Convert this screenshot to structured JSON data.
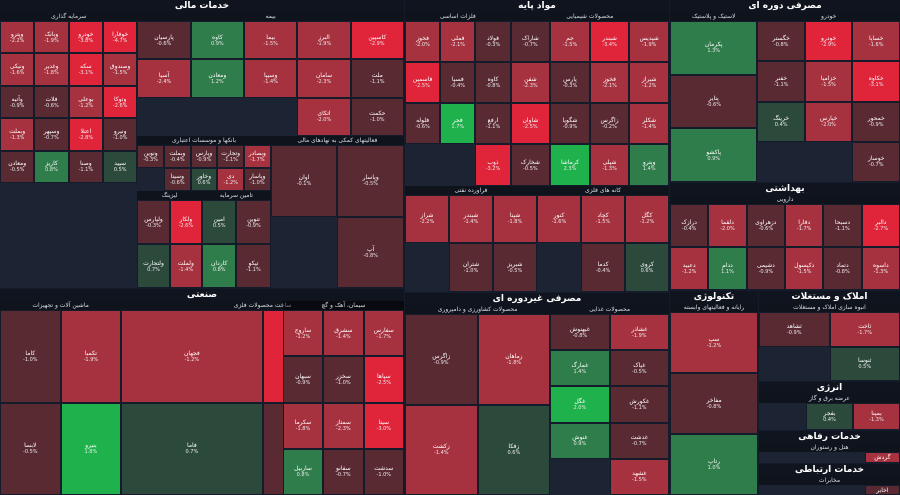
{
  "colors": {
    "red_dark": "#5a2a33",
    "red_mid": "#a7323f",
    "red_bright": "#e0243a",
    "green_dark": "#2c4a3c",
    "green_mid": "#2f7d4a",
    "green_bright": "#1fb24c",
    "neutral": "#3d4250",
    "bg": "#141c2b"
  },
  "chart_data": {
    "type": "heatmap",
    "sectors": [
      {
        "id": "financial",
        "title": "خدمات مالی",
        "subs": [
          {
            "id": "insurance",
            "title": "بیمه",
            "tiles": [
              {
                "n": "کاسپین",
                "c": -2.9
              },
              {
                "n": "البرز",
                "c": -1.9
              },
              {
                "n": "بیما",
                "c": -1.5
              },
              {
                "n": "کاوه",
                "c": 0.9
              },
              {
                "n": "پارسیان",
                "c": -0.6
              },
              {
                "n": "ملت",
                "c": -1.1
              },
              {
                "n": "سامان",
                "c": -2.3
              },
              {
                "n": "وسیپا",
                "c": -1.4
              },
              {
                "n": "ومعادن",
                "c": 1.2
              },
              {
                "n": "آسیا",
                "c": -2.4
              },
              {
                "n": "حکمت",
                "c": -1.0
              },
              {
                "n": "اتکای",
                "c": -2.0
              }
            ]
          },
          {
            "id": "invest",
            "title": "سرمایه گذاری",
            "tiles": [
              {
                "n": "خوفارا",
                "c": -4.7
              },
              {
                "n": "خودرو",
                "c": -3.8
              },
              {
                "n": "وبانک",
                "c": -1.9
              },
              {
                "n": "وپترو",
                "c": -2.2
              },
              {
                "n": "وصندوق",
                "c": -1.5
              },
              {
                "n": "سکه",
                "c": -3.1
              },
              {
                "n": "وغدیر",
                "c": -1.8
              },
              {
                "n": "ونیکی",
                "c": -1.6
              },
              {
                "n": "وتوکا",
                "c": -2.6
              },
              {
                "n": "بوعلی",
                "c": -1.2
              },
              {
                "n": "فلات",
                "c": -0.6
              },
              {
                "n": "وآتیه",
                "c": -0.9
              },
              {
                "n": "ونیرو",
                "c": -1.0
              },
              {
                "n": "اعتلا",
                "c": -2.8
              },
              {
                "n": "وسپهر",
                "c": -0.7
              },
              {
                "n": "وبملت",
                "c": -1.3
              },
              {
                "n": "سپید",
                "c": 0.5
              },
              {
                "n": "وصنا",
                "c": -1.1
              },
              {
                "n": "کاریز",
                "c": 0.8
              },
              {
                "n": "ومعادن",
                "c": -0.5
              }
            ]
          },
          {
            "id": "banks",
            "title": "بانکها و موسسات اعتباری",
            "tiles": [
              {
                "n": "وبصادر",
                "c": -1.7
              },
              {
                "n": "وتجارت",
                "c": -1.1
              },
              {
                "n": "وپارس",
                "c": -0.9
              },
              {
                "n": "وبملت",
                "c": -0.4
              },
              {
                "n": "ونوین",
                "c": -0.3
              },
              {
                "n": "وپاسار",
                "c": -1.0
              },
              {
                "n": "دی",
                "c": -1.2
              },
              {
                "n": "وخاور",
                "c": 0.6
              },
              {
                "n": "وسینا",
                "c": -0.6
              }
            ]
          },
          {
            "id": "leasing",
            "title": "لیزینگ",
            "tiles": [
              {
                "n": "ولکار",
                "c": -2.6
              },
              {
                "n": "ولپارس",
                "c": -0.3
              },
              {
                "n": "ولملت",
                "c": -1.4
              },
              {
                "n": "ولتجارت",
                "c": 0.7
              }
            ]
          },
          {
            "id": "equity",
            "title": "تامین سرمایه",
            "tiles": [
              {
                "n": "تنوین",
                "c": -0.9
              },
              {
                "n": "امین",
                "c": 0.5
              },
              {
                "n": "تپکو",
                "c": -1.1
              },
              {
                "n": "کاردان",
                "c": 0.8
              }
            ]
          },
          {
            "id": "funds",
            "title": "فعالیتهای کمکی به نهادهای مالی",
            "tiles": [
              {
                "n": "وپاسار",
                "c": -0.5
              },
              {
                "n": "اوان",
                "c": -0.1
              },
              {
                "n": "آپ",
                "c": -0.8
              }
            ]
          }
        ]
      },
      {
        "id": "base",
        "title": "مواد پایه",
        "subs": [
          {
            "id": "chem",
            "title": "محصولات شیمیایی",
            "tiles": [
              {
                "n": "شپدیس",
                "c": -1.9
              },
              {
                "n": "شبندر",
                "c": -3.4
              },
              {
                "n": "جم",
                "c": -1.5
              },
              {
                "n": "شاراک",
                "c": -0.7
              },
              {
                "n": "شیراز",
                "c": -1.2
              },
              {
                "n": "فخوز",
                "c": -2.1
              },
              {
                "n": "پارس",
                "c": -0.3
              },
              {
                "n": "شفن",
                "c": -2.3
              },
              {
                "n": "شکلر",
                "c": -1.4
              },
              {
                "n": "زاگرس",
                "c": -0.2
              },
              {
                "n": "شگویا",
                "c": -0.9
              },
              {
                "n": "شاوان",
                "c": -2.5
              },
              {
                "n": "وپترو",
                "c": 1.4
              },
              {
                "n": "شپلی",
                "c": -1.3
              },
              {
                "n": "کرماشا",
                "c": 2.3
              },
              {
                "n": "شخارک",
                "c": -0.5
              }
            ]
          },
          {
            "id": "metals",
            "title": "فلزات اساسی",
            "tiles": [
              {
                "n": "فولاد",
                "c": -0.3
              },
              {
                "n": "فملی",
                "c": -2.1
              },
              {
                "n": "فخوز",
                "c": -2.0
              },
              {
                "n": "کاوه",
                "c": -0.8
              },
              {
                "n": "فسپا",
                "c": -0.4
              },
              {
                "n": "فاسمین",
                "c": -2.5
              },
              {
                "n": "ارفع",
                "c": -1.1
              },
              {
                "n": "فجر",
                "c": 1.7
              },
              {
                "n": "فلوله",
                "c": -0.6
              },
              {
                "n": "ذوب",
                "c": -3.2
              }
            ]
          },
          {
            "id": "oil",
            "title": "فراورده نفتی",
            "tiles": [
              {
                "n": "شپنا",
                "c": -1.8
              },
              {
                "n": "شبندر",
                "c": -1.4
              },
              {
                "n": "شراز",
                "c": -2.2
              },
              {
                "n": "شبریز",
                "c": -0.5
              },
              {
                "n": "شتران",
                "c": -1.0
              }
            ]
          },
          {
            "id": "mining",
            "title": "کانه های فلزی",
            "tiles": [
              {
                "n": "کگل",
                "c": -1.2
              },
              {
                "n": "کچاد",
                "c": -1.5
              },
              {
                "n": "کنور",
                "c": -1.6
              },
              {
                "n": "کروی",
                "c": 0.6
              },
              {
                "n": "کدما",
                "c": -0.4
              }
            ]
          },
          {
            "id": "cement",
            "title": "سیمان، آهک و گچ",
            "tiles": [
              {
                "n": "سفارس",
                "c": -1.7
              },
              {
                "n": "سشرق",
                "c": -1.4
              },
              {
                "n": "ساروج",
                "c": -1.2
              },
              {
                "n": "سپاها",
                "c": -2.5
              },
              {
                "n": "سخزر",
                "c": -1.0
              },
              {
                "n": "سبهان",
                "c": -0.9
              },
              {
                "n": "سیتا",
                "c": -3.0
              },
              {
                "n": "سمتاز",
                "c": -2.3
              },
              {
                "n": "سکرما",
                "c": -1.8
              },
              {
                "n": "سدشت",
                "c": -1.0
              },
              {
                "n": "سفانو",
                "c": -0.7
              },
              {
                "n": "ساربیل",
                "c": 0.8
              }
            ]
          }
        ]
      },
      {
        "id": "cyclical",
        "title": "مصرفی دوره ای",
        "subs": [
          {
            "id": "auto",
            "title": "خودرو",
            "tiles": [
              {
                "n": "خساپا",
                "c": -1.6
              },
              {
                "n": "خودرو",
                "c": -2.9
              },
              {
                "n": "خگستر",
                "c": -0.8
              },
              {
                "n": "خکاوه",
                "c": -3.1
              },
              {
                "n": "خزامیا",
                "c": -1.5
              },
              {
                "n": "خفنر",
                "c": -1.1
              },
              {
                "n": "خمحور",
                "c": -0.9
              },
              {
                "n": "خپارس",
                "c": -2.0
              },
              {
                "n": "خرینگ",
                "c": 0.4
              },
              {
                "n": "خوساز",
                "c": -0.7
              }
            ]
          },
          {
            "id": "rubber",
            "title": "لاستیک و پلاستیک",
            "tiles": [
              {
                "n": "پکرمان",
                "c": 1.3
              },
              {
                "n": "پتایر",
                "c": -0.6
              },
              {
                "n": "پاکشو",
                "c": 0.9
              }
            ]
          }
        ]
      },
      {
        "id": "health",
        "title": "بهداشتی",
        "subs": [
          {
            "id": "pharma",
            "title": "دارویی",
            "tiles": [
              {
                "n": "دالبر",
                "c": -2.7
              },
              {
                "n": "دسبحا",
                "c": -1.1
              },
              {
                "n": "دفارا",
                "c": -1.7
              },
              {
                "n": "دزهراوی",
                "c": -0.6
              },
              {
                "n": "دلقما",
                "c": -2.0
              },
              {
                "n": "درازک",
                "c": -0.4
              },
              {
                "n": "داسوه",
                "c": -1.3
              },
              {
                "n": "دتماد",
                "c": -0.8
              },
              {
                "n": "دکپسول",
                "c": -1.5
              },
              {
                "n": "دشیمی",
                "c": -0.9
              },
              {
                "n": "ددام",
                "c": 1.1
              },
              {
                "n": "دعبید",
                "c": -1.2
              }
            ]
          }
        ]
      },
      {
        "id": "noncyc",
        "title": "مصرفی غیردوره ای",
        "subs": [
          {
            "id": "food",
            "title": "محصولات غذایی",
            "tiles": [
              {
                "n": "غشاذر",
                "c": -1.9
              },
              {
                "n": "غبهنوش",
                "c": -0.8
              },
              {
                "n": "غپاک",
                "c": -0.5
              },
              {
                "n": "غمارگ",
                "c": 1.4
              },
              {
                "n": "غکورش",
                "c": -1.1
              },
              {
                "n": "غگل",
                "c": 2.0
              },
              {
                "n": "غدشت",
                "c": -0.7
              },
              {
                "n": "غنوش",
                "c": 0.9
              },
              {
                "n": "غشهد",
                "c": -1.5
              }
            ]
          },
          {
            "id": "agri",
            "title": "محصولات کشاورزی و دامپروری",
            "tiles": [
              {
                "n": "زماهان",
                "c": -1.8
              },
              {
                "n": "زاگرس",
                "c": -0.9
              },
              {
                "n": "زفکا",
                "c": 0.6
              },
              {
                "n": "زکشت",
                "c": -1.4
              }
            ]
          }
        ]
      },
      {
        "id": "industrial",
        "title": "صنعتی",
        "subs": [
          {
            "id": "metal_prod",
            "title": "ساخت محصولات فلزی",
            "tiles": [
              {
                "n": "فنوال",
                "c": -2.7
              },
              {
                "n": "فجهان",
                "c": -1.2
              },
              {
                "n": "فلامی",
                "c": -0.5
              },
              {
                "n": "فاما",
                "c": 0.7
              }
            ]
          },
          {
            "id": "machinery",
            "title": "ماشین آلات و تجهیزات",
            "tiles": [
              {
                "n": "تکمبا",
                "c": -1.9
              },
              {
                "n": "کاما",
                "c": -1.0
              },
              {
                "n": "بنیرو",
                "c": 1.8
              },
              {
                "n": "لابسا",
                "c": -0.5
              }
            ]
          }
        ]
      },
      {
        "id": "tech",
        "title": "تکنولوژی",
        "subs": [
          {
            "id": "software",
            "title": "رایانه و فعالیتهای وابسته",
            "tiles": [
              {
                "n": "سپ",
                "c": -1.2
              },
              {
                "n": "مفاخر",
                "c": -0.8
              },
              {
                "n": "رتاپ",
                "c": 1.0
              }
            ]
          }
        ]
      },
      {
        "id": "realestate",
        "title": "املاک و مستغلات",
        "subs": [
          {
            "id": "build",
            "title": "انبوه سازی املاک و مستغلات",
            "tiles": [
              {
                "n": "ثاخت",
                "c": -1.7
              },
              {
                "n": "ثشاهد",
                "c": -0.9
              },
              {
                "n": "ثنوسا",
                "c": 0.5
              }
            ]
          }
        ]
      },
      {
        "id": "energy",
        "title": "انرژی",
        "subs": [
          {
            "id": "util",
            "title": "عرضه برق و گاز",
            "tiles": [
              {
                "n": "بمپنا",
                "c": -1.3
              },
              {
                "n": "بفجر",
                "c": 0.4
              }
            ]
          }
        ]
      },
      {
        "id": "welfare",
        "title": "خدمات رفاهی",
        "subs": [
          {
            "id": "hotel",
            "title": "هتل و رستوران",
            "tiles": [
              {
                "n": "گردش",
                "c": -1.6
              }
            ]
          }
        ]
      },
      {
        "id": "comm",
        "title": "خدمات ارتباطی",
        "subs": [
          {
            "id": "tel",
            "title": "مخابرات",
            "tiles": [
              {
                "n": "اخابر",
                "c": -0.8
              }
            ]
          }
        ]
      }
    ]
  }
}
